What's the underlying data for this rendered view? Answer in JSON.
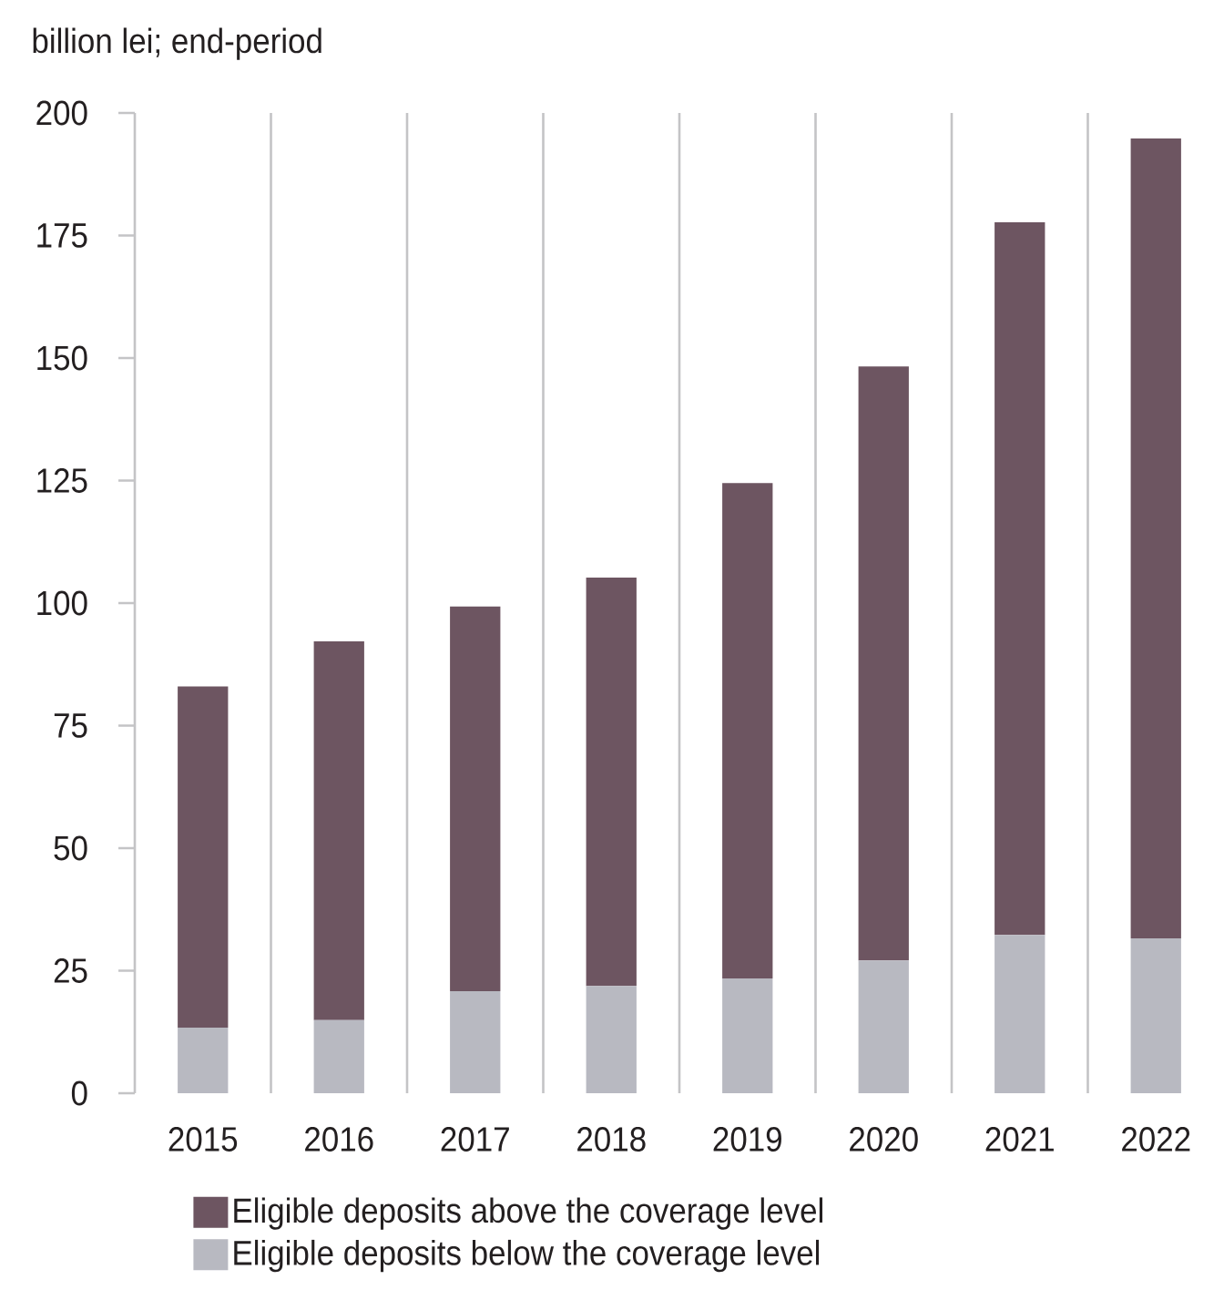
{
  "chart_data": {
    "type": "bar",
    "stacked": true,
    "ylabel": "billion lei; end-period",
    "categories": [
      "2015",
      "2016",
      "2017",
      "2018",
      "2019",
      "2020",
      "2021",
      "2022"
    ],
    "series": [
      {
        "name": "Eligible deposits below the coverage level",
        "color": "#b8b9c1",
        "values": [
          13.4,
          14.9,
          20.8,
          21.9,
          23.4,
          27.1,
          32.3,
          31.6
        ]
      },
      {
        "name": "Eligible deposits above the coverage level",
        "color": "#6d5561",
        "values": [
          69.6,
          77.3,
          78.5,
          83.3,
          101.1,
          121.2,
          145.4,
          163.2
        ]
      }
    ],
    "ylim": [
      0,
      200
    ],
    "yticks": [
      0,
      25,
      50,
      75,
      100,
      125,
      150,
      175,
      200
    ],
    "grid": "x",
    "legend": "bottom"
  }
}
